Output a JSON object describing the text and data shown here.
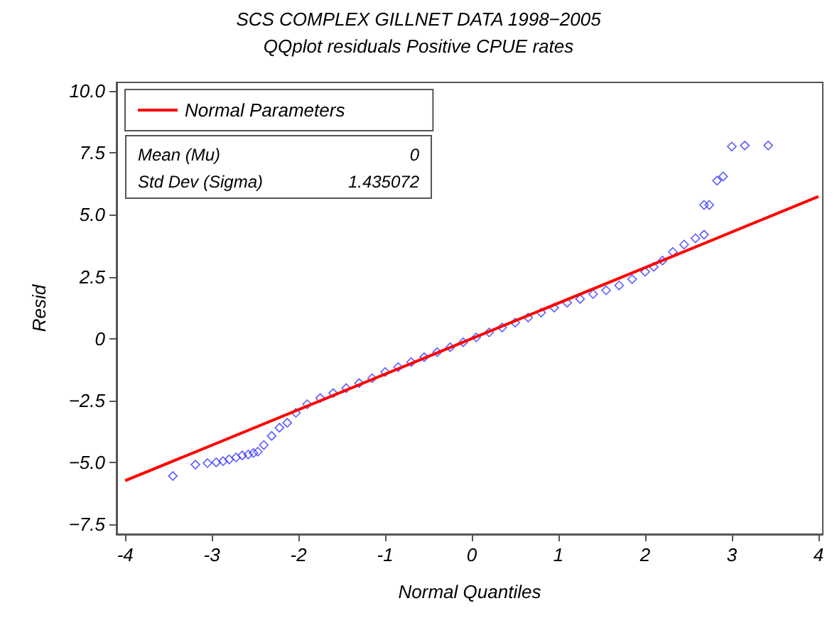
{
  "chart_data": {
    "type": "scatter",
    "title": "SCS COMPLEX GILLNET DATA 1998−2005",
    "subtitle": "QQplot residuals Positive CPUE rates",
    "xlabel": "Normal Quantiles",
    "ylabel": "Resid",
    "xlim": [
      -4.1,
      4.05
    ],
    "ylim": [
      -7.9,
      10.35
    ],
    "xticks": [
      -4,
      -3,
      -2,
      -1,
      0,
      1,
      2,
      3,
      4
    ],
    "yticks": [
      {
        "value": -7.5,
        "label": "−7.5"
      },
      {
        "value": -5,
        "label": "−5.0"
      },
      {
        "value": -2.5,
        "label": "−2.5"
      },
      {
        "value": 0,
        "label": "0"
      },
      {
        "value": 2.5,
        "label": "2.5"
      },
      {
        "value": 5,
        "label": "5.0"
      },
      {
        "value": 7.5,
        "label": "7.5"
      },
      {
        "value": 10,
        "label": "10.0"
      }
    ],
    "grid": false,
    "legend": "top left",
    "marker": "diamond",
    "annotations": [
      "Mean (Mu)",
      "0",
      "Std Dev (Sigma)",
      "1.435072"
    ],
    "series": [
      {
        "color": "#3333ff",
        "x": [
          -3.45,
          -3.19,
          -3.05,
          -2.95,
          -2.87,
          -2.8,
          -2.72,
          -2.65,
          -2.58,
          -2.52,
          -2.47,
          -2.4,
          -2.31,
          -2.22,
          -2.13,
          -2.03,
          -1.9,
          -1.75,
          -1.6,
          -1.45,
          -1.3,
          -1.15,
          -1.0,
          -0.85,
          -0.7,
          -0.55,
          -0.4,
          -0.25,
          -0.1,
          0.05,
          0.2,
          0.35,
          0.5,
          0.65,
          0.8,
          0.95,
          1.1,
          1.25,
          1.4,
          1.55,
          1.7,
          1.85,
          2.0,
          2.1,
          2.2,
          2.32,
          2.45,
          2.58,
          2.68,
          2.68,
          2.74,
          2.83,
          2.9,
          3.0,
          3.15,
          3.42
        ],
        "values": [
          -5.55,
          -5.09,
          -5.03,
          -5.0,
          -4.95,
          -4.88,
          -4.8,
          -4.72,
          -4.68,
          -4.62,
          -4.57,
          -4.3,
          -3.93,
          -3.6,
          -3.4,
          -3.0,
          -2.65,
          -2.4,
          -2.2,
          -2.0,
          -1.8,
          -1.6,
          -1.35,
          -1.15,
          -0.95,
          -0.75,
          -0.55,
          -0.35,
          -0.15,
          0.05,
          0.25,
          0.45,
          0.65,
          0.85,
          1.05,
          1.25,
          1.45,
          1.6,
          1.8,
          1.95,
          2.15,
          2.4,
          2.7,
          2.9,
          3.15,
          3.5,
          3.8,
          4.05,
          4.2,
          5.4,
          5.4,
          6.38,
          6.55,
          7.76,
          7.8,
          7.8
        ]
      },
      {
        "type": "line",
        "name": "Normal Parameters",
        "color": "#ff0000",
        "marker": "none",
        "line_style": "solid",
        "x": [
          -4,
          4
        ],
        "values": [
          -5.74,
          5.74
        ]
      }
    ]
  }
}
